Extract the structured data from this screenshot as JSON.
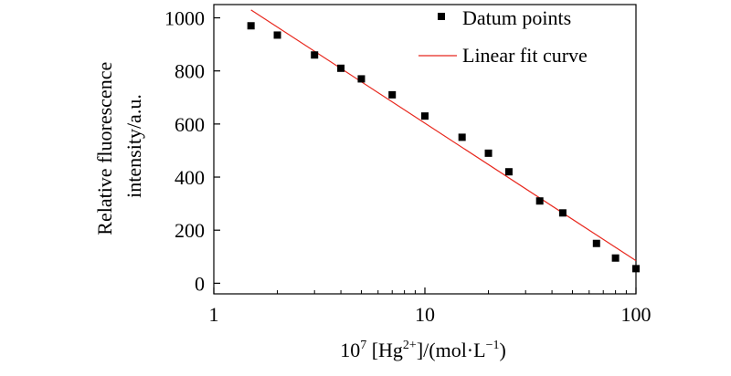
{
  "chart_data": {
    "type": "scatter",
    "xlabel": {
      "base": "10",
      "exp": "7",
      "mid": " [Hg",
      "ion": "2+",
      "tail": "]/(mol·L",
      "unit_exp": "−1",
      "close": ")"
    },
    "ylabel_lines": [
      "Relative fluorescence",
      "intensity/a.u."
    ],
    "x_scale": "log",
    "xlim": [
      1,
      100
    ],
    "ylim": [
      -40,
      1050
    ],
    "x_ticks": [
      1,
      10,
      100
    ],
    "x_tick_labels": [
      "1",
      "10",
      "100"
    ],
    "y_ticks": [
      0,
      200,
      400,
      600,
      800,
      1000
    ],
    "y_tick_labels": [
      "0",
      "200",
      "400",
      "600",
      "800",
      "1000"
    ],
    "grid": false,
    "legend_position": "top-right",
    "series": [
      {
        "name": "Datum points",
        "kind": "scatter",
        "marker": "square",
        "color": "#000000",
        "x": [
          1.5,
          2,
          3,
          4,
          5,
          7,
          10,
          15,
          20,
          25,
          35,
          45,
          65,
          80,
          100
        ],
        "y": [
          970,
          935,
          860,
          810,
          770,
          710,
          630,
          550,
          490,
          420,
          310,
          265,
          150,
          95,
          55
        ]
      },
      {
        "name": "Linear fit curve",
        "kind": "line",
        "color": "#e8281e",
        "x": [
          1.5,
          100
        ],
        "y": [
          1030,
          85
        ]
      }
    ]
  }
}
